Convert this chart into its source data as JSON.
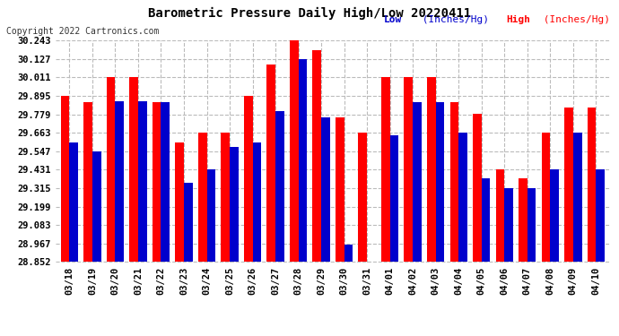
{
  "title": "Barometric Pressure Daily High/Low 20220411",
  "copyright": "Copyright 2022 Cartronics.com",
  "background_color": "#ffffff",
  "ylim": [
    28.852,
    30.243
  ],
  "yticks": [
    28.852,
    28.967,
    29.083,
    29.199,
    29.315,
    29.431,
    29.547,
    29.663,
    29.779,
    29.895,
    30.011,
    30.127,
    30.243
  ],
  "dates": [
    "03/18",
    "03/19",
    "03/20",
    "03/21",
    "03/22",
    "03/23",
    "03/24",
    "03/25",
    "03/26",
    "03/27",
    "03/28",
    "03/29",
    "03/30",
    "03/31",
    "04/01",
    "04/02",
    "04/03",
    "04/04",
    "04/05",
    "04/06",
    "04/07",
    "04/08",
    "04/09",
    "04/10"
  ],
  "high": [
    29.895,
    29.858,
    30.011,
    30.011,
    29.858,
    29.6,
    29.663,
    29.663,
    29.895,
    30.09,
    30.243,
    30.18,
    29.76,
    29.663,
    30.011,
    30.011,
    30.011,
    29.858,
    29.78,
    29.431,
    29.38,
    29.663,
    29.82,
    29.82
  ],
  "low": [
    29.6,
    29.547,
    29.863,
    29.863,
    29.858,
    29.35,
    29.435,
    29.575,
    29.6,
    29.8,
    30.127,
    29.76,
    28.96,
    28.852,
    29.65,
    29.858,
    29.858,
    29.663,
    29.38,
    29.315,
    29.315,
    29.431,
    29.663,
    29.431
  ],
  "high_color": "#ff0000",
  "low_color": "#0000cc",
  "bar_width": 0.38
}
